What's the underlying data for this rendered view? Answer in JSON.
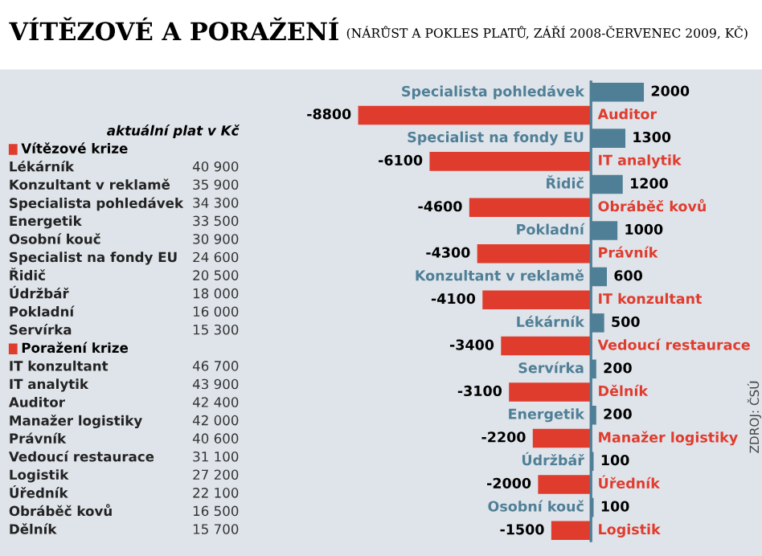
{
  "chart_data": [
    {
      "type": "bar",
      "orientation": "horizontal",
      "title": "VÍTĚZOVÉ A PORAŽENÍ",
      "subtitle": "(NÁRŮST A POKLES PLATŮ, ZÁŘÍ 2008-ČERVENEC 2009, KČ)",
      "categories": [
        "Specialista pohledávek",
        "Auditor",
        "Specialist na fondy EU",
        "IT analytik",
        "Řidič",
        "Obráběč kovů",
        "Pokladní",
        "Právník",
        "Konzultant v reklamě",
        "IT konzultant",
        "Lékárník",
        "Vedoucí restaurace",
        "Servírka",
        "Dělník",
        "Energetik",
        "Manažer logistiky",
        "Údržbář",
        "Úředník",
        "Osobní kouč",
        "Logistik"
      ],
      "values": [
        2000,
        -8800,
        1300,
        -6100,
        1200,
        -4600,
        1000,
        -4300,
        600,
        -4100,
        500,
        -3400,
        200,
        -3100,
        200,
        -2200,
        100,
        -2000,
        100,
        -1500
      ],
      "colors": [
        "#4f7f96",
        "#e03c2e",
        "#4f7f96",
        "#e03c2e",
        "#4f7f96",
        "#e03c2e",
        "#4f7f96",
        "#e03c2e",
        "#4f7f96",
        "#e03c2e",
        "#4f7f96",
        "#e03c2e",
        "#4f7f96",
        "#e03c2e",
        "#4f7f96",
        "#e03c2e",
        "#4f7f96",
        "#e03c2e",
        "#4f7f96",
        "#e03c2e"
      ],
      "data_labels": true,
      "tick_labels": false,
      "ref_lines": [
        {
          "axis": "x",
          "value": 0,
          "color": "#4f7f96"
        }
      ],
      "annotations": [
        "ZDROJ: ČSÚ"
      ]
    },
    {
      "type": "other",
      "subtitle": "aktuální plat v Kč",
      "title": "Vítězové krize",
      "categories": [
        "Lékárník",
        "Konzultant v reklamě",
        "Specialista pohledávek",
        "Energetik",
        "Osobní kouč",
        "Specialist na fondy EU",
        "Řidič",
        "Údržbář",
        "Pokladní",
        "Servírka"
      ],
      "values": [
        40900,
        35900,
        34300,
        33500,
        30900,
        24600,
        20500,
        18000,
        16000,
        15300
      ],
      "value_labels": [
        "40 900",
        "35 900",
        "34 300",
        "33 500",
        "30 900",
        "24 600",
        "20 500",
        "18 000",
        "16 000",
        "15 300"
      ]
    },
    {
      "type": "other",
      "title": "Poražení krize",
      "categories": [
        "IT konzultant",
        "IT analytik",
        "Auditor",
        "Manažer logistiky",
        "Právník",
        "Vedoucí restaurace",
        "Logistik",
        "Úředník",
        "Obráběč kovů",
        "Dělník"
      ],
      "values": [
        46700,
        43900,
        42400,
        42000,
        40600,
        31100,
        27200,
        22100,
        16500,
        15700
      ],
      "value_labels": [
        "46 700",
        "43 900",
        "42 400",
        "42 000",
        "40 600",
        "31 100",
        "27 200",
        "22 100",
        "16 500",
        "15 700"
      ]
    }
  ]
}
